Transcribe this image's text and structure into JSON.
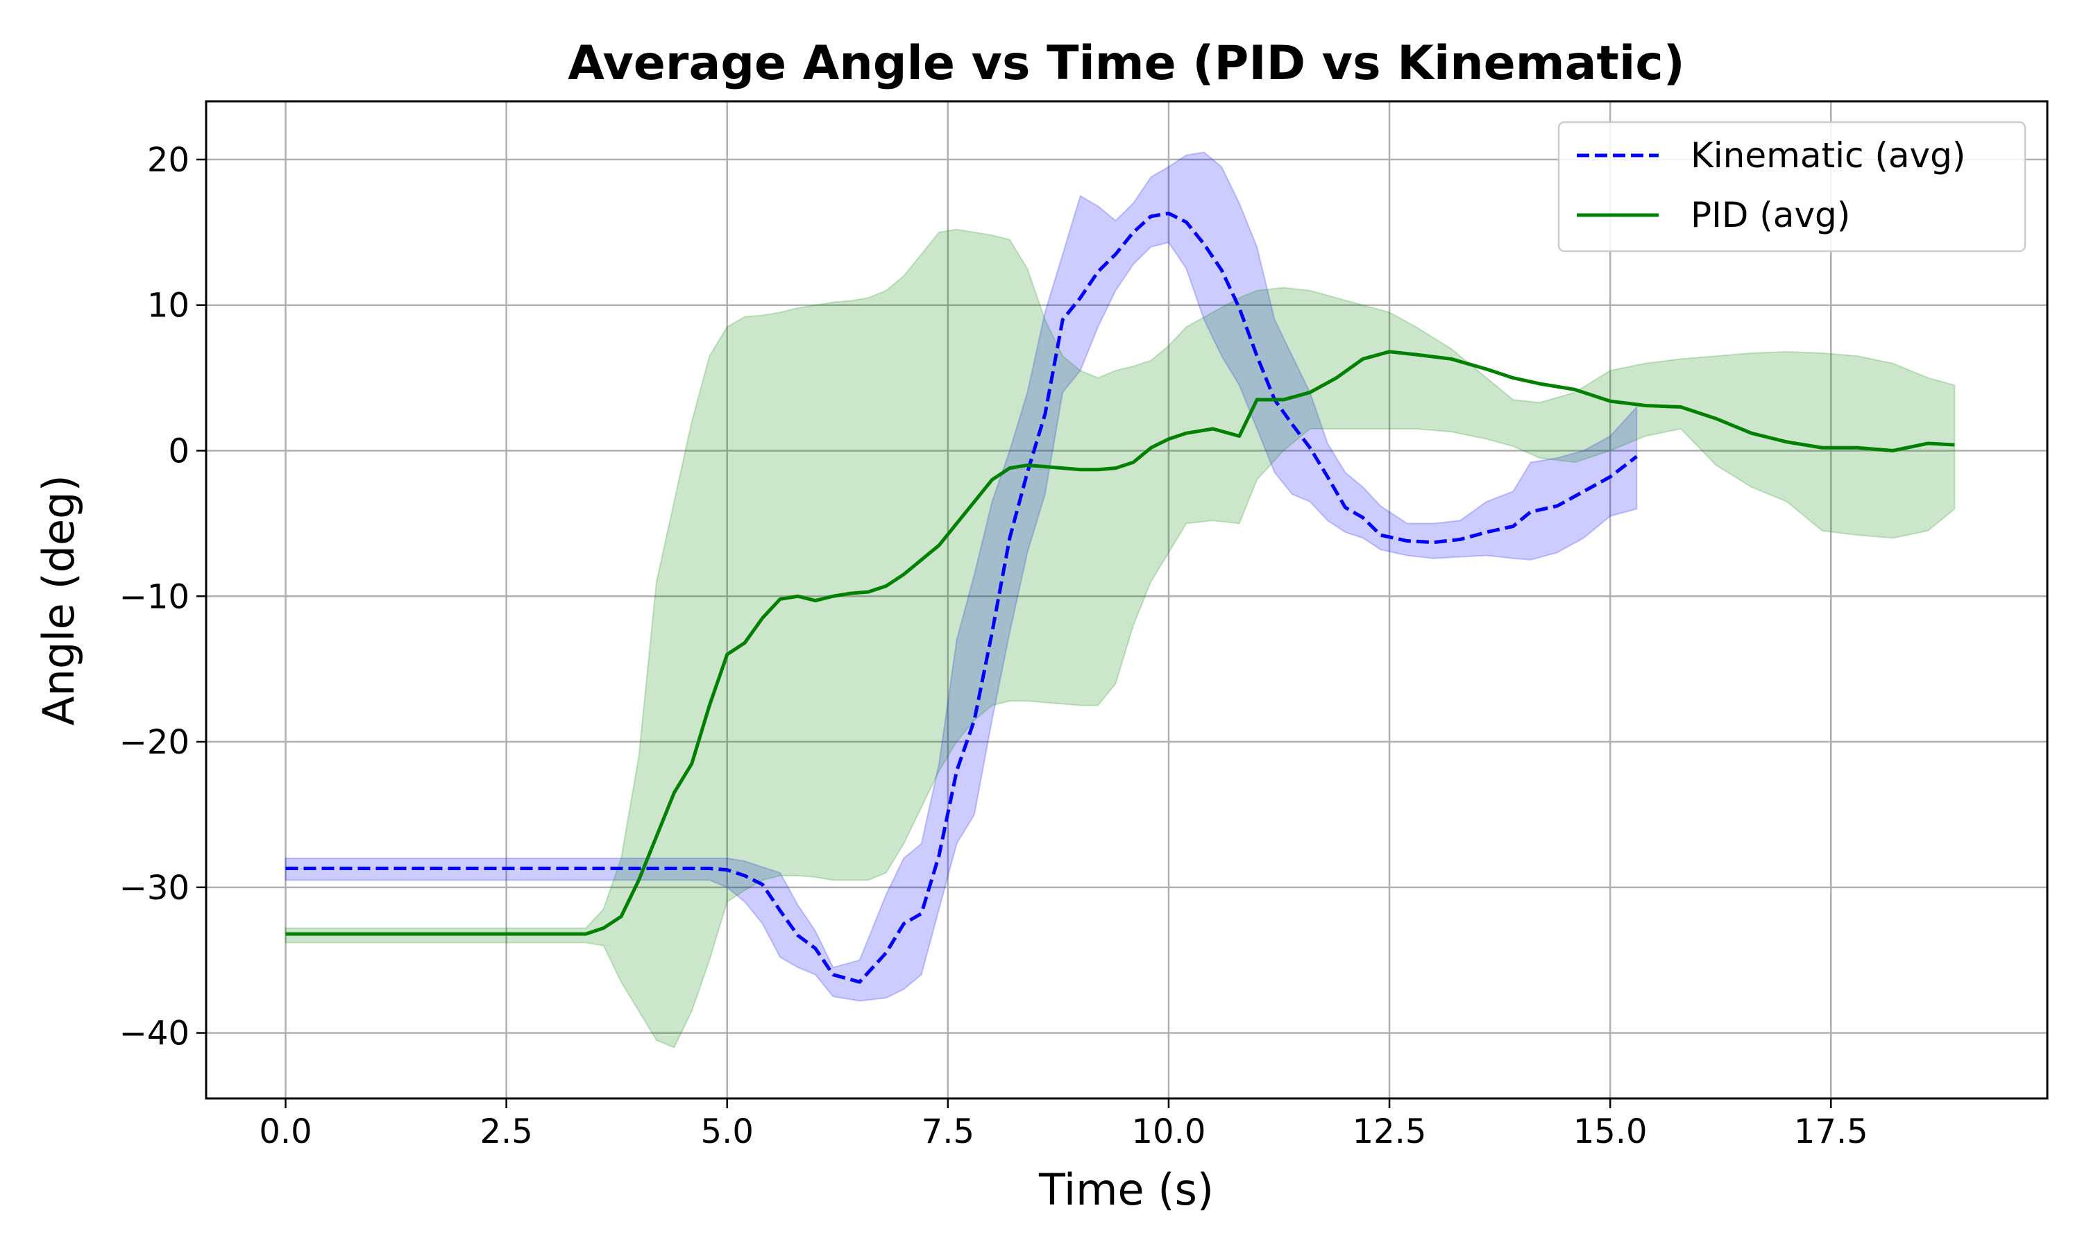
{
  "chart_data": {
    "type": "line",
    "title": "Average Angle vs Time (PID vs Kinematic)",
    "xlabel": "Time (s)",
    "ylabel": "Angle (deg)",
    "xlim": [
      -0.9,
      19.95
    ],
    "ylim": [
      -44.5,
      24
    ],
    "xticks": [
      0,
      2.5,
      5,
      7.5,
      10,
      12.5,
      15,
      17.5
    ],
    "xtick_labels": [
      "0.0",
      "2.5",
      "5.0",
      "7.5",
      "10.0",
      "12.5",
      "15.0",
      "17.5"
    ],
    "yticks": [
      20,
      10,
      0,
      -10,
      -20,
      -30,
      -40
    ],
    "ytick_labels": [
      "20",
      "10",
      "0",
      "−10",
      "−20",
      "−30",
      "−40"
    ],
    "grid": true,
    "legend_position": "top-right",
    "series": [
      {
        "name": "Kinematic (avg)",
        "color": "#0000ff",
        "fill_color": "#0000ff",
        "style": "dashed",
        "x": [
          0,
          1,
          2,
          3,
          4,
          4.5,
          4.8,
          5.0,
          5.2,
          5.4,
          5.6,
          5.8,
          6.0,
          6.2,
          6.5,
          6.8,
          7.0,
          7.2,
          7.4,
          7.6,
          7.8,
          8.0,
          8.2,
          8.4,
          8.6,
          8.8,
          9.0,
          9.2,
          9.4,
          9.6,
          9.8,
          10.0,
          10.2,
          10.4,
          10.6,
          10.8,
          11.0,
          11.2,
          11.4,
          11.6,
          11.8,
          12.0,
          12.2,
          12.4,
          12.7,
          13.0,
          13.3,
          13.6,
          13.9,
          14.1,
          14.4,
          14.7,
          15.0,
          15.3
        ],
        "values": [
          -28.7,
          -28.7,
          -28.7,
          -28.7,
          -28.7,
          -28.7,
          -28.7,
          -28.8,
          -29.2,
          -29.8,
          -31.6,
          -33.3,
          -34.2,
          -36.0,
          -36.5,
          -34.5,
          -32.5,
          -31.8,
          -27.8,
          -22.0,
          -18.5,
          -12.5,
          -6.0,
          -1.5,
          2.5,
          9.0,
          10.5,
          12.3,
          13.5,
          15.0,
          16.1,
          16.3,
          15.7,
          14.2,
          12.4,
          9.8,
          6.5,
          3.5,
          1.8,
          0.2,
          -1.8,
          -3.9,
          -4.6,
          -5.8,
          -6.2,
          -6.3,
          -6.1,
          -5.6,
          -5.2,
          -4.2,
          -3.8,
          -2.8,
          -1.8,
          -0.4
        ],
        "lower": [
          -29.5,
          -29.5,
          -29.5,
          -29.5,
          -29.5,
          -29.5,
          -29.5,
          -30.0,
          -31.0,
          -32.5,
          -34.8,
          -35.5,
          -36.0,
          -37.5,
          -37.8,
          -37.6,
          -37.0,
          -36.0,
          -31.5,
          -27.0,
          -25.0,
          -18.5,
          -12.5,
          -7.0,
          -3.0,
          4.0,
          5.5,
          8.5,
          11.0,
          12.8,
          14.0,
          14.3,
          12.5,
          9.0,
          6.5,
          4.5,
          1.5,
          -1.5,
          -3.0,
          -3.5,
          -4.8,
          -5.6,
          -6.0,
          -6.8,
          -7.2,
          -7.4,
          -7.3,
          -7.2,
          -7.4,
          -7.5,
          -7.0,
          -6.0,
          -4.5,
          -4.0
        ],
        "upper": [
          -28.0,
          -28.0,
          -28.0,
          -28.0,
          -28.0,
          -28.0,
          -28.0,
          -28.0,
          -28.2,
          -28.6,
          -29.0,
          -31.2,
          -33.0,
          -35.5,
          -35.0,
          -30.5,
          -28.0,
          -27.0,
          -21.5,
          -13.0,
          -8.5,
          -3.5,
          0.0,
          4.0,
          9.5,
          13.5,
          17.5,
          16.8,
          15.8,
          17.0,
          18.8,
          19.5,
          20.3,
          20.5,
          19.5,
          17.0,
          14.0,
          9.0,
          6.5,
          4.0,
          0.5,
          -1.5,
          -2.5,
          -3.8,
          -5.0,
          -5.0,
          -4.8,
          -3.5,
          -2.8,
          -0.8,
          -0.5,
          0.0,
          1.0,
          3.0
        ]
      },
      {
        "name": "PID (avg)",
        "color": "#008000",
        "fill_color": "#008000",
        "style": "solid",
        "x": [
          0,
          1,
          2,
          3,
          3.4,
          3.6,
          3.8,
          4.0,
          4.2,
          4.4,
          4.6,
          4.8,
          5.0,
          5.2,
          5.4,
          5.6,
          5.8,
          6.0,
          6.2,
          6.4,
          6.6,
          6.8,
          7.0,
          7.2,
          7.4,
          7.6,
          7.8,
          8.0,
          8.2,
          8.4,
          8.6,
          8.8,
          9.0,
          9.2,
          9.4,
          9.6,
          9.8,
          10.0,
          10.2,
          10.5,
          10.8,
          11.0,
          11.3,
          11.6,
          11.9,
          12.2,
          12.5,
          12.8,
          13.2,
          13.6,
          13.9,
          14.2,
          14.6,
          15.0,
          15.4,
          15.8,
          16.2,
          16.6,
          17.0,
          17.4,
          17.8,
          18.2,
          18.6,
          18.9
        ],
        "values": [
          -33.2,
          -33.2,
          -33.2,
          -33.2,
          -33.2,
          -32.8,
          -32.0,
          -29.5,
          -26.5,
          -23.5,
          -21.5,
          -17.5,
          -14.0,
          -13.2,
          -11.5,
          -10.2,
          -10.0,
          -10.3,
          -10.0,
          -9.8,
          -9.7,
          -9.3,
          -8.5,
          -7.5,
          -6.5,
          -5.0,
          -3.5,
          -2.0,
          -1.2,
          -1.0,
          -1.1,
          -1.2,
          -1.3,
          -1.3,
          -1.2,
          -0.8,
          0.2,
          0.8,
          1.2,
          1.5,
          1.0,
          3.5,
          3.5,
          4.0,
          5.0,
          6.3,
          6.8,
          6.6,
          6.3,
          5.6,
          5.0,
          4.6,
          4.2,
          3.4,
          3.1,
          3.0,
          2.2,
          1.2,
          0.6,
          0.2,
          0.2,
          0.0,
          0.5,
          0.4
        ],
        "lower": [
          -33.8,
          -33.8,
          -33.8,
          -33.8,
          -33.8,
          -34.0,
          -36.5,
          -38.5,
          -40.5,
          -41.0,
          -38.5,
          -35.0,
          -31.0,
          -30.2,
          -29.5,
          -29.2,
          -29.2,
          -29.3,
          -29.5,
          -29.5,
          -29.5,
          -29.0,
          -27.0,
          -24.5,
          -22.0,
          -20.0,
          -18.5,
          -17.5,
          -17.2,
          -17.2,
          -17.3,
          -17.4,
          -17.5,
          -17.5,
          -16.0,
          -12.0,
          -9.0,
          -7.0,
          -5.0,
          -4.8,
          -5.0,
          -2.0,
          0.0,
          1.5,
          1.5,
          1.5,
          1.5,
          1.5,
          1.3,
          0.8,
          0.3,
          -0.5,
          -0.8,
          0.0,
          1.0,
          1.5,
          -1.0,
          -2.5,
          -3.5,
          -5.5,
          -5.8,
          -6.0,
          -5.5,
          -4.0
        ],
        "upper": [
          -32.8,
          -32.8,
          -32.8,
          -32.8,
          -32.8,
          -31.5,
          -28.0,
          -21.0,
          -9.0,
          -3.5,
          2.0,
          6.5,
          8.5,
          9.2,
          9.3,
          9.5,
          9.8,
          10.0,
          10.2,
          10.3,
          10.5,
          11.0,
          12.0,
          13.5,
          15.0,
          15.2,
          15.0,
          14.8,
          14.5,
          12.5,
          9.0,
          6.5,
          5.5,
          5.0,
          5.5,
          5.8,
          6.2,
          7.2,
          8.5,
          9.5,
          10.5,
          11.0,
          11.2,
          11.0,
          10.5,
          10.0,
          9.5,
          8.5,
          7.0,
          5.0,
          3.5,
          3.3,
          4.0,
          5.5,
          6.0,
          6.3,
          6.5,
          6.7,
          6.8,
          6.7,
          6.5,
          6.0,
          5.0,
          4.5
        ]
      }
    ]
  }
}
